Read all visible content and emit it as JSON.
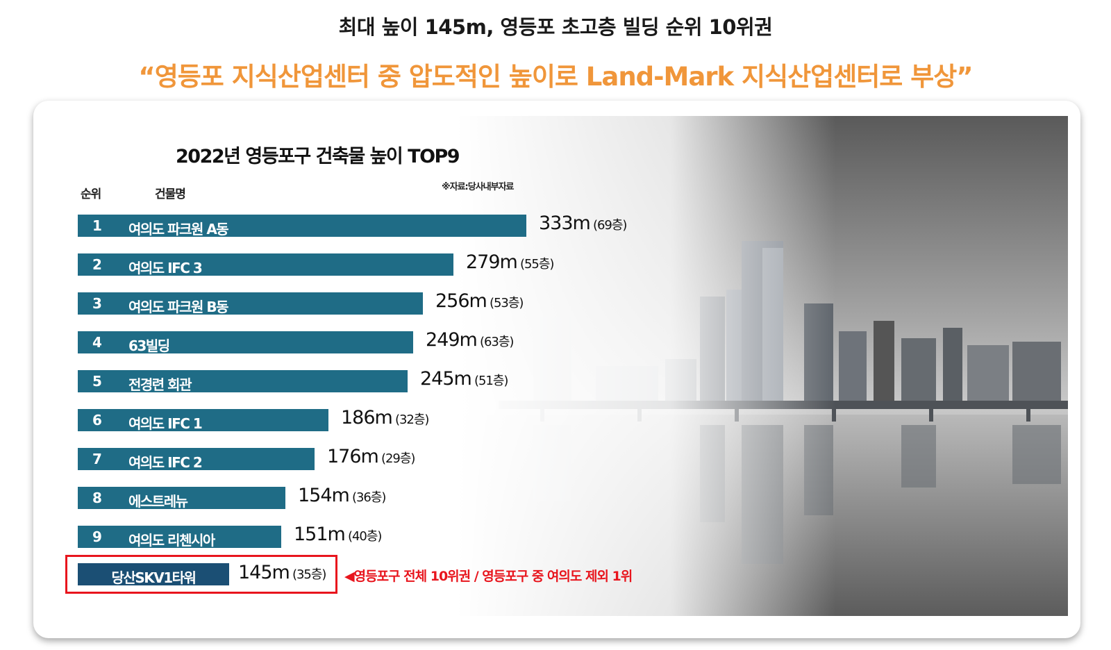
{
  "header": {
    "headline": "최대 높이 145m, 영등포 초고층 빌딩 순위 10위권",
    "subheadline": "“영등포 지식산업센터 중 압도적인 높이로 Land-Mark 지식산업센터로 부상”"
  },
  "chart_data": {
    "type": "bar",
    "orientation": "horizontal",
    "title": "2022년 영등포구 건축물 높이 TOP9",
    "column_labels": {
      "rank": "순위",
      "name": "건물명"
    },
    "source": "※자료:당사내부자료",
    "bar_color": "#1f6c86",
    "xlim": [
      0,
      333
    ],
    "items": [
      {
        "rank": "1",
        "name": "여의도 파크원 A동",
        "height": 333,
        "height_label": "333m",
        "floors_label": "(69층)"
      },
      {
        "rank": "2",
        "name": "여의도 IFC 3",
        "height": 279,
        "height_label": "279m",
        "floors_label": "(55층)"
      },
      {
        "rank": "3",
        "name": "여의도 파크원 B동",
        "height": 256,
        "height_label": "256m",
        "floors_label": "(53층)"
      },
      {
        "rank": "4",
        "name": "63빌딩",
        "height": 249,
        "height_label": "249m",
        "floors_label": "(63층)"
      },
      {
        "rank": "5",
        "name": "전경련 회관",
        "height": 245,
        "height_label": "245m",
        "floors_label": "(51층)"
      },
      {
        "rank": "6",
        "name": "여의도 IFC 1",
        "height": 186,
        "height_label": "186m",
        "floors_label": "(32층)"
      },
      {
        "rank": "7",
        "name": "여의도 IFC 2",
        "height": 176,
        "height_label": "176m",
        "floors_label": "(29층)"
      },
      {
        "rank": "8",
        "name": "에스트레뉴",
        "height": 154,
        "height_label": "154m",
        "floors_label": "(36층)"
      },
      {
        "rank": "9",
        "name": "여의도 리첸시아",
        "height": 151,
        "height_label": "151m",
        "floors_label": "(40층)"
      }
    ],
    "highlight": {
      "name": "당산SKV1타워",
      "height": 145,
      "height_label": "145m",
      "floors_label": "(35층)",
      "bar_color": "#1b4f74",
      "border_color": "#e8151d",
      "note": "◀영등포구 전체 10위권 / 영등포구 중 여의도 제외 1위"
    }
  }
}
